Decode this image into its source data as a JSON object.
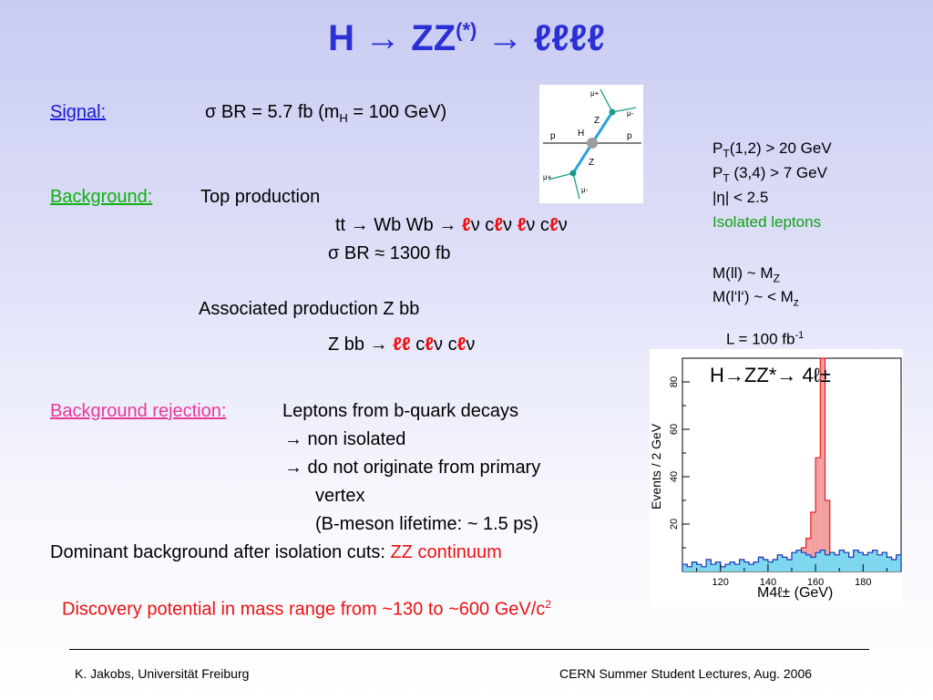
{
  "title": {
    "main": "H → ZZ",
    "sup": "(*)",
    "tail": "→ ℓℓℓℓ"
  },
  "signal": {
    "label": "Signal:",
    "sigma": "σ",
    "br": "BR = 5.7 fb   (m",
    "sub": "H",
    "rest": " = 100 GeV)"
  },
  "background": {
    "label": "Background:",
    "top": "Top production",
    "tt_a": "tt → Wb Wb → ",
    "l": "ℓ",
    "nu": "ν",
    "c": " c",
    "br_top": "BR ≈ 1300 fb",
    "assoc": "Associated production  Z bb",
    "zbb": "Z bb → ",
    "ll": "ℓℓ"
  },
  "rejection": {
    "label": "Background rejection:",
    "l1": "Leptons from b-quark decays",
    "l2": "→ non isolated",
    "l3": "→ do not originate from primary",
    "l4": "vertex",
    "l5": "(B-meson lifetime: ~ 1.5 ps)"
  },
  "dominant": {
    "text": "Dominant background after isolation cuts:",
    "red": "ZZ continuum"
  },
  "discovery": {
    "text": "Discovery potential in mass range from ~130  to ~600 GeV/c",
    "sup": "2"
  },
  "cuts": {
    "pt12": "(1,2) > 20  GeV",
    "pt34": " (3,4) >  7  GeV",
    "P": "P",
    "T": "T",
    "eta": "|η|  < 2.5",
    "iso": "Isolated leptons",
    "mll": "M(ll)  ~      M",
    "mll_sub": "Z",
    "mll2": "M(l‘l‘) ~ < M",
    "mll2_sub": "z"
  },
  "lumi": {
    "text": "L = 100 fb",
    "sup": "-1"
  },
  "feynman": {
    "mu_plus": "μ+",
    "mu_minus": "μ-",
    "p": "p",
    "H": "H",
    "Z": "Z"
  },
  "plot": {
    "annotation": "H→ZZ*→ 4ℓ±",
    "ylabel": "Events / 2 GeV",
    "xlabel": "M4ℓ± (GeV)",
    "signal_color": "#f5a0a0",
    "background_color": "#7cd8f0"
  },
  "chart_data": {
    "type": "bar",
    "xlabel": "M4ℓ± (GeV)",
    "ylabel": "Events / 2 GeV",
    "xlim": [
      104,
      196
    ],
    "ylim": [
      0,
      90
    ],
    "x_ticks": [
      120,
      140,
      160,
      180
    ],
    "y_ticks": [
      20,
      40,
      60,
      80
    ],
    "bin_width": 2,
    "bin_start": 104,
    "series": [
      {
        "values": [
          3,
          2,
          4,
          3,
          2,
          5,
          3,
          4,
          2,
          3,
          4,
          3,
          5,
          4,
          3,
          4,
          6,
          5,
          4,
          5,
          7,
          6,
          5,
          8,
          9,
          8,
          7,
          6,
          8,
          9,
          7,
          8,
          7,
          9,
          8,
          6,
          9,
          8,
          7,
          8,
          9,
          7,
          8,
          6,
          5,
          7
        ]
      },
      {
        "values": [
          3,
          2,
          4,
          3,
          2,
          5,
          3,
          4,
          2,
          3,
          4,
          3,
          5,
          4,
          3,
          4,
          6,
          5,
          4,
          5,
          7,
          6,
          5,
          8,
          9,
          10,
          14,
          25,
          48,
          90,
          30,
          8,
          7,
          9,
          8,
          6,
          9,
          8,
          7,
          8,
          9,
          7,
          8,
          6,
          5,
          7
        ]
      }
    ]
  },
  "footer": {
    "left": "K. Jakobs,  Universität Freiburg",
    "right": "CERN Summer Student Lectures,  Aug. 2006"
  }
}
